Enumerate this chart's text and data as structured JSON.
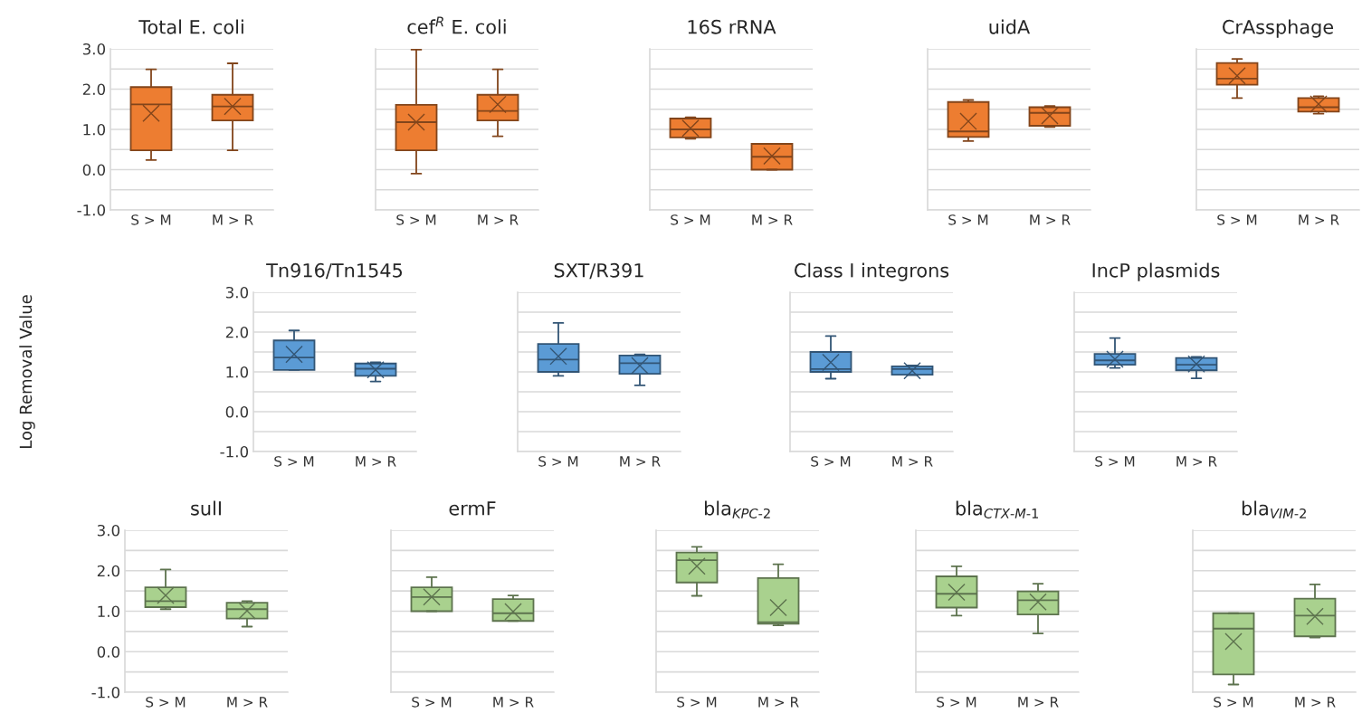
{
  "chart_data": [
    {
      "type": "box",
      "title": "Total E. coli",
      "categories": [
        "S > M",
        "M > R"
      ],
      "colors": [
        "#ed7d31",
        "#ed7d31"
      ],
      "ylim": [
        -1,
        3
      ],
      "yticks": [
        {
          "value": -1,
          "label": "-1.0"
        },
        {
          "value": -0.5,
          "label": null
        },
        {
          "value": 0,
          "label": "0.0"
        },
        {
          "value": 0.5,
          "label": null
        },
        {
          "value": 1,
          "label": "1.0"
        },
        {
          "value": 1.5,
          "label": null
        },
        {
          "value": 2,
          "label": "2.0"
        },
        {
          "value": 2.5,
          "label": null
        },
        {
          "value": 3,
          "label": "3.0"
        }
      ],
      "grid": "y",
      "boxes": [
        {
          "low": 0.24,
          "q1": 0.48,
          "median": 1.62,
          "q3": 2.05,
          "high": 2.49,
          "mean": 1.4
        },
        {
          "low": 0.48,
          "q1": 1.22,
          "median": 1.57,
          "q3": 1.86,
          "high": 2.64,
          "mean": 1.57
        }
      ]
    },
    {
      "type": "box",
      "title": "cef$^{R}$ E. coli",
      "categories": [
        "S > M",
        "M > R"
      ],
      "colors": [
        "#ed7d31",
        "#ed7d31"
      ],
      "ylim": [
        -1,
        3
      ],
      "yticks": [
        -1,
        -0.5,
        0,
        0.5,
        1,
        1.5,
        2,
        2.5,
        3
      ],
      "grid": "y",
      "tick_labels": "x",
      "boxes": [
        {
          "low": -0.1,
          "q1": 0.48,
          "median": 1.18,
          "q3": 1.61,
          "high": 2.98,
          "mean": 1.18
        },
        {
          "low": 0.83,
          "q1": 1.22,
          "median": 1.46,
          "q3": 1.86,
          "high": 2.49,
          "mean": 1.62
        }
      ]
    },
    {
      "type": "box",
      "title": "16S rRNA",
      "categories": [
        "S > M",
        "M > R"
      ],
      "colors": [
        "#ed7d31",
        "#ed7d31"
      ],
      "ylim": [
        -1,
        3
      ],
      "yticks": [
        -1,
        -0.5,
        0,
        0.5,
        1,
        1.5,
        2,
        2.5,
        3
      ],
      "grid": "y",
      "tick_labels": "x",
      "boxes": [
        {
          "low": 0.77,
          "q1": 0.8,
          "median": 1.0,
          "q3": 1.27,
          "high": 1.3,
          "mean": 1.03
        },
        {
          "low": 0.0,
          "q1": 0.0,
          "median": 0.32,
          "q3": 0.64,
          "high": 0.64,
          "mean": 0.34
        }
      ]
    },
    {
      "type": "box",
      "title": "uidA",
      "categories": [
        "S > M",
        "M > R"
      ],
      "colors": [
        "#ed7d31",
        "#ed7d31"
      ],
      "ylim": [
        -1,
        3
      ],
      "yticks": [
        -1,
        -0.5,
        0,
        0.5,
        1,
        1.5,
        2,
        2.5,
        3
      ],
      "grid": "y",
      "tick_labels": "x",
      "boxes": [
        {
          "low": 0.71,
          "q1": 0.81,
          "median": 0.95,
          "q3": 1.68,
          "high": 1.73,
          "mean": 1.2
        },
        {
          "low": 1.06,
          "q1": 1.09,
          "median": 1.41,
          "q3": 1.55,
          "high": 1.58,
          "mean": 1.34
        }
      ]
    },
    {
      "type": "box",
      "title": "CrAssphage",
      "categories": [
        "S > M",
        "M > R"
      ],
      "colors": [
        "#ed7d31",
        "#ed7d31"
      ],
      "ylim": [
        -1,
        3
      ],
      "yticks": [
        -1,
        -0.5,
        0,
        0.5,
        1,
        1.5,
        2,
        2.5,
        3
      ],
      "grid": "y",
      "tick_labels": "x",
      "boxes": [
        {
          "low": 1.78,
          "q1": 2.11,
          "median": 2.26,
          "q3": 2.65,
          "high": 2.75,
          "mean": 2.33
        },
        {
          "low": 1.39,
          "q1": 1.44,
          "median": 1.55,
          "q3": 1.78,
          "high": 1.82,
          "mean": 1.63
        }
      ]
    },
    {
      "type": "box",
      "title": "Tn916/Tn1545",
      "ylabel": "Log Removal Value",
      "categories": [
        "S > M",
        "M > R"
      ],
      "colors": [
        "#5b9bd5",
        "#5b9bd5"
      ],
      "ylim": [
        -1,
        3
      ],
      "yticks": [
        {
          "value": -1,
          "label": "-1.0"
        },
        {
          "value": -0.5,
          "label": null
        },
        {
          "value": 0,
          "label": "0.0"
        },
        {
          "value": 0.5,
          "label": null
        },
        {
          "value": 1,
          "label": "1.0"
        },
        {
          "value": 1.5,
          "label": null
        },
        {
          "value": 2,
          "label": "2.0"
        },
        {
          "value": 2.5,
          "label": null
        },
        {
          "value": 3,
          "label": "3.0"
        }
      ],
      "grid": "y",
      "boxes": [
        {
          "low": 1.05,
          "q1": 1.05,
          "median": 1.36,
          "q3": 1.79,
          "high": 2.04,
          "mean": 1.44
        },
        {
          "low": 0.76,
          "q1": 0.9,
          "median": 1.08,
          "q3": 1.21,
          "high": 1.24,
          "mean": 1.05
        }
      ]
    },
    {
      "type": "box",
      "title": "SXT/R391",
      "categories": [
        "S > M",
        "M > R"
      ],
      "colors": [
        "#5b9bd5",
        "#5b9bd5"
      ],
      "ylim": [
        -1,
        3
      ],
      "yticks": [
        -1,
        -0.5,
        0,
        0.5,
        1,
        1.5,
        2,
        2.5,
        3
      ],
      "grid": "y",
      "tick_labels": "x",
      "boxes": [
        {
          "low": 0.9,
          "q1": 1.0,
          "median": 1.31,
          "q3": 1.7,
          "high": 2.23,
          "mean": 1.39
        },
        {
          "low": 0.66,
          "q1": 0.95,
          "median": 1.22,
          "q3": 1.41,
          "high": 1.44,
          "mean": 1.16
        }
      ]
    },
    {
      "type": "box",
      "title": "Class I integrons",
      "categories": [
        "S > M",
        "M > R"
      ],
      "colors": [
        "#5b9bd5",
        "#5b9bd5"
      ],
      "ylim": [
        -1,
        3
      ],
      "yticks": [
        -1,
        -0.5,
        0,
        0.5,
        1,
        1.5,
        2,
        2.5,
        3
      ],
      "grid": "y",
      "tick_labels": "x",
      "boxes": [
        {
          "low": 0.83,
          "q1": 1.0,
          "median": 1.07,
          "q3": 1.5,
          "high": 1.9,
          "mean": 1.24
        },
        {
          "low": 0.92,
          "q1": 0.93,
          "median": 1.07,
          "q3": 1.14,
          "high": 1.16,
          "mean": 1.03
        }
      ]
    },
    {
      "type": "box",
      "title": "IncP plasmids",
      "categories": [
        "S > M",
        "M > R"
      ],
      "colors": [
        "#5b9bd5",
        "#5b9bd5"
      ],
      "ylim": [
        -1,
        3
      ],
      "yticks": [
        -1,
        -0.5,
        0,
        0.5,
        1,
        1.5,
        2,
        2.5,
        3
      ],
      "grid": "y",
      "tick_labels": "x",
      "boxes": [
        {
          "low": 1.1,
          "q1": 1.18,
          "median": 1.29,
          "q3": 1.45,
          "high": 1.85,
          "mean": 1.32
        },
        {
          "low": 0.84,
          "q1": 1.04,
          "median": 1.18,
          "q3": 1.35,
          "high": 1.38,
          "mean": 1.2
        }
      ]
    },
    {
      "type": "box",
      "title": "sulI",
      "categories": [
        "S > M",
        "M > R"
      ],
      "colors": [
        "#a9d18e",
        "#a9d18e"
      ],
      "ylim": [
        -1,
        3
      ],
      "yticks": [
        {
          "value": -1,
          "label": "-1.0"
        },
        {
          "value": -0.5,
          "label": null
        },
        {
          "value": 0,
          "label": "0.0"
        },
        {
          "value": 0.5,
          "label": null
        },
        {
          "value": 1,
          "label": "1.0"
        },
        {
          "value": 1.5,
          "label": null
        },
        {
          "value": 2,
          "label": "2.0"
        },
        {
          "value": 2.5,
          "label": null
        },
        {
          "value": 3,
          "label": "3.0"
        }
      ],
      "grid": "y",
      "boxes": [
        {
          "low": 1.05,
          "q1": 1.1,
          "median": 1.25,
          "q3": 1.59,
          "high": 2.03,
          "mean": 1.39
        },
        {
          "low": 0.62,
          "q1": 0.82,
          "median": 1.05,
          "q3": 1.21,
          "high": 1.25,
          "mean": 1.01
        }
      ]
    },
    {
      "type": "box",
      "title": "ermF",
      "categories": [
        "S > M",
        "M > R"
      ],
      "colors": [
        "#a9d18e",
        "#a9d18e"
      ],
      "ylim": [
        -1,
        3
      ],
      "yticks": [
        -1,
        -0.5,
        0,
        0.5,
        1,
        1.5,
        2,
        2.5,
        3
      ],
      "grid": "y",
      "tick_labels": "x",
      "boxes": [
        {
          "low": 1.0,
          "q1": 1.0,
          "median": 1.35,
          "q3": 1.59,
          "high": 1.84,
          "mean": 1.35
        },
        {
          "low": 0.76,
          "q1": 0.76,
          "median": 0.95,
          "q3": 1.3,
          "high": 1.39,
          "mean": 0.99
        }
      ]
    },
    {
      "type": "box",
      "title": "bla$_{KPC-2}$",
      "categories": [
        "S > M",
        "M > R"
      ],
      "colors": [
        "#a9d18e",
        "#a9d18e"
      ],
      "ylim": [
        -1,
        3
      ],
      "yticks": [
        -1,
        -0.5,
        0,
        0.5,
        1,
        1.5,
        2,
        2.5,
        3
      ],
      "grid": "y",
      "tick_labels": "x",
      "boxes": [
        {
          "low": 1.38,
          "q1": 1.71,
          "median": 2.26,
          "q3": 2.45,
          "high": 2.59,
          "mean": 2.11
        },
        {
          "low": 0.65,
          "q1": 0.69,
          "median": 0.73,
          "q3": 1.82,
          "high": 2.16,
          "mean": 1.09
        }
      ]
    },
    {
      "type": "box",
      "title": "bla$_{CTX-M-1}$",
      "categories": [
        "S > M",
        "M > R"
      ],
      "colors": [
        "#a9d18e",
        "#a9d18e"
      ],
      "ylim": [
        -1,
        3
      ],
      "yticks": [
        -1,
        -0.5,
        0,
        0.5,
        1,
        1.5,
        2,
        2.5,
        3
      ],
      "grid": "y",
      "tick_labels": "x",
      "boxes": [
        {
          "low": 0.89,
          "q1": 1.09,
          "median": 1.43,
          "q3": 1.86,
          "high": 2.11,
          "mean": 1.47
        },
        {
          "low": 0.45,
          "q1": 0.92,
          "median": 1.27,
          "q3": 1.49,
          "high": 1.68,
          "mean": 1.23
        }
      ]
    },
    {
      "type": "box",
      "title": "bla$_{VIM-2}$",
      "categories": [
        "S > M",
        "M > R"
      ],
      "colors": [
        "#a9d18e",
        "#a9d18e"
      ],
      "ylim": [
        -1,
        3
      ],
      "yticks": [
        -1,
        -0.5,
        0,
        0.5,
        1,
        1.5,
        2,
        2.5,
        3
      ],
      "grid": "y",
      "tick_labels": "x",
      "boxes": [
        {
          "low": -0.81,
          "q1": -0.56,
          "median": 0.57,
          "q3": 0.95,
          "high": 0.95,
          "mean": 0.25
        },
        {
          "low": 0.35,
          "q1": 0.38,
          "median": 0.89,
          "q3": 1.31,
          "high": 1.66,
          "mean": 0.87
        }
      ]
    }
  ]
}
